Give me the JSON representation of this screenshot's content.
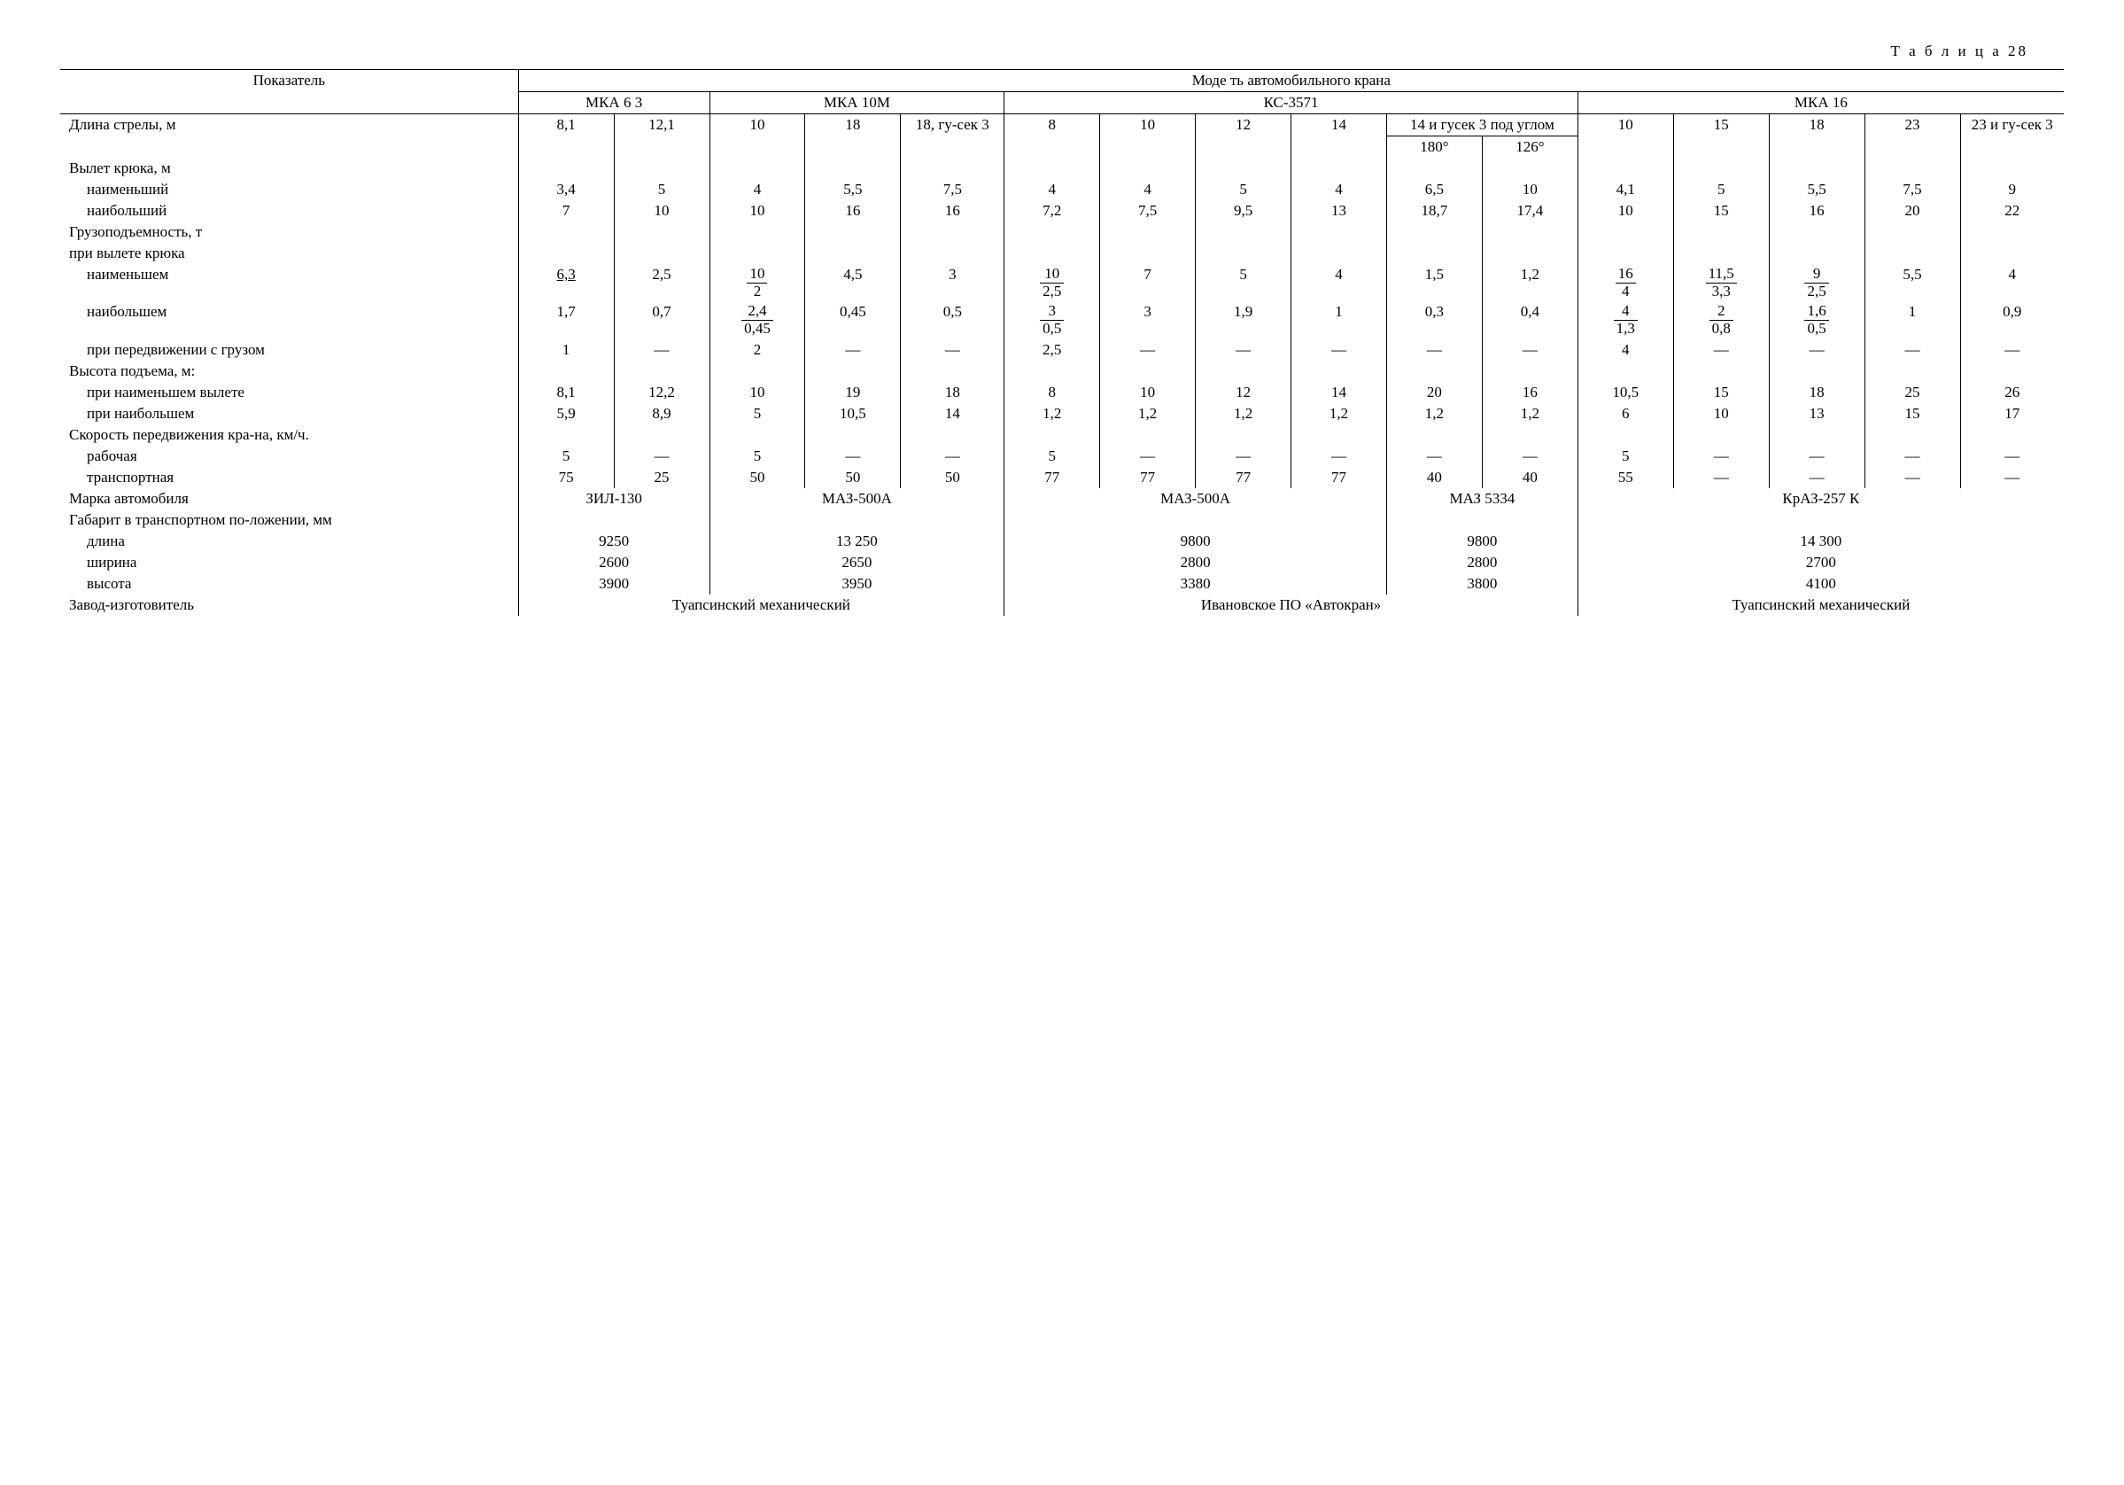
{
  "caption": "Т а б л и ц а  28",
  "header": {
    "param": "Показатель",
    "group_title": "Моде ть автомобильного крана",
    "models": {
      "m1": "МКА 6 3",
      "m2": "МКА 10М",
      "m3": "КС-3571",
      "m4": "МКА 16"
    }
  },
  "rows": {
    "boom_len": {
      "label": "Длина стрелы, м",
      "c1": "8,1",
      "c2": "12,1",
      "c3": "10",
      "c4": "18",
      "c5": "18, гу-сек 3",
      "c6": "8",
      "c7": "10",
      "c8": "12",
      "c9": "14",
      "c10_label": "14 и гусек 3 под углом",
      "c10a": "180°",
      "c10b": "126°",
      "c11": "10",
      "c12": "15",
      "c13": "18",
      "c14": "23",
      "c15": "23 и гу-сек 3"
    },
    "hook_reach": {
      "label": "Вылет крюка, м"
    },
    "hook_min": {
      "label": "наименьший",
      "c1": "3,4",
      "c2": "5",
      "c3": "4",
      "c4": "5,5",
      "c5": "7,5",
      "c6": "4",
      "c7": "4",
      "c8": "5",
      "c9": "4",
      "c10a": "6,5",
      "c10b": "10",
      "c11": "4,1",
      "c12": "5",
      "c13": "5,5",
      "c14": "7,5",
      "c15": "9"
    },
    "hook_max": {
      "label": "наибольший",
      "c1": "7",
      "c2": "10",
      "c3": "10",
      "c4": "16",
      "c5": "16",
      "c6": "7,2",
      "c7": "7,5",
      "c8": "9,5",
      "c9": "13",
      "c10a": "18,7",
      "c10b": "17,4",
      "c11": "10",
      "c12": "15",
      "c13": "16",
      "c14": "20",
      "c15": "22"
    },
    "capacity_h1": {
      "label": "Грузоподъемность, т"
    },
    "capacity_h2": {
      "label": "при вылете крюка"
    },
    "cap_min": {
      "label": "наименьшем",
      "c1": "6,3",
      "c2": "2,5",
      "c3n": "10",
      "c3d": "2",
      "c4": "4,5",
      "c5": "3",
      "c6n": "10",
      "c6d": "2,5",
      "c7": "7",
      "c8": "5",
      "c9": "4",
      "c10a": "1,5",
      "c10b": "1,2",
      "c11n": "16",
      "c11d": "4",
      "c12n": "11,5",
      "c12d": "3,3",
      "c13n": "9",
      "c13d": "2,5",
      "c14": "5,5",
      "c15": "4"
    },
    "cap_max": {
      "label": "наибольшем",
      "c1": "1,7",
      "c2": "0,7",
      "c3n": "2,4",
      "c3d": "0,45",
      "c4": "0,45",
      "c5": "0,5",
      "c6n": "3",
      "c6d": "0,5",
      "c7": "3",
      "c8": "1,9",
      "c9": "1",
      "c10a": "0,3",
      "c10b": "0,4",
      "c11n": "4",
      "c11d": "1,3",
      "c12n": "2",
      "c12d": "0,8",
      "c13n": "1,6",
      "c13d": "0,5",
      "c14": "1",
      "c15": "0,9"
    },
    "cap_moving": {
      "label": "при передвижении с грузом",
      "c1": "1",
      "c2": "—",
      "c3": "2",
      "c4": "—",
      "c5": "—",
      "c6": "2,5",
      "c7": "—",
      "c8": "—",
      "c9": "—",
      "c10a": "—",
      "c10b": "—",
      "c11": "4",
      "c12": "—",
      "c13": "—",
      "c14": "—",
      "c15": "—"
    },
    "lift_h": {
      "label": "Высота подъема, м:"
    },
    "lift_min": {
      "label": "при наименьшем вылете",
      "c1": "8,1",
      "c2": "12,2",
      "c3": "10",
      "c4": "19",
      "c5": "18",
      "c6": "8",
      "c7": "10",
      "c8": "12",
      "c9": "14",
      "c10a": "20",
      "c10b": "16",
      "c11": "10,5",
      "c12": "15",
      "c13": "18",
      "c14": "25",
      "c15": "26"
    },
    "lift_max": {
      "label": "при наибольшем",
      "c1": "5,9",
      "c2": "8,9",
      "c3": "5",
      "c4": "10,5",
      "c5": "14",
      "c6": "1,2",
      "c7": "1,2",
      "c8": "1,2",
      "c9": "1,2",
      "c10a": "1,2",
      "c10b": "1,2",
      "c11": "6",
      "c12": "10",
      "c13": "13",
      "c14": "15",
      "c15": "17"
    },
    "speed_h": {
      "label": "Скорость передвижения кра-на, км/ч."
    },
    "speed_work": {
      "label": "рабочая",
      "c1": "5",
      "c2": "—",
      "c3": "5",
      "c4": "—",
      "c5": "—",
      "c6": "5",
      "c7": "—",
      "c8": "—",
      "c9": "—",
      "c10a": "—",
      "c10b": "—",
      "c11": "5",
      "c12": "—",
      "c13": "—",
      "c14": "—",
      "c15": "—"
    },
    "speed_trans": {
      "label": "транспортная",
      "c1": "75",
      "c2": "25",
      "c3": "50",
      "c4": "50",
      "c5": "50",
      "c6": "77",
      "c7": "77",
      "c8": "77",
      "c9": "77",
      "c10a": "40",
      "c10b": "40",
      "c11": "55",
      "c12": "—",
      "c13": "—",
      "c14": "—",
      "c15": "—"
    },
    "truck": {
      "label": "Марка автомобиля",
      "g1": "ЗИЛ-130",
      "g2": "МАЗ-500А",
      "g3": "МАЗ-500А",
      "g4": "МАЗ 5334",
      "g5": "КрАЗ-257 К"
    },
    "dims_h": {
      "label": "Габарит в транспортном по-ложении, мм"
    },
    "dim_len": {
      "label": "длина",
      "g1": "9250",
      "g2": "13 250",
      "g3": "9800",
      "g4": "9800",
      "g5": "14 300"
    },
    "dim_wid": {
      "label": "ширина",
      "g1": "2600",
      "g2": "2650",
      "g3": "2800",
      "g4": "2800",
      "g5": "2700"
    },
    "dim_hgt": {
      "label": "высота",
      "g1": "3900",
      "g2": "3950",
      "g3": "3380",
      "g4": "3800",
      "g5": "4100"
    },
    "mfr": {
      "label": "Завод-изготовитель",
      "g1": "Туапсинский механический",
      "g2": "Ивановское  ПО  «Автокран»",
      "g3": "Туапсинский механический"
    }
  }
}
